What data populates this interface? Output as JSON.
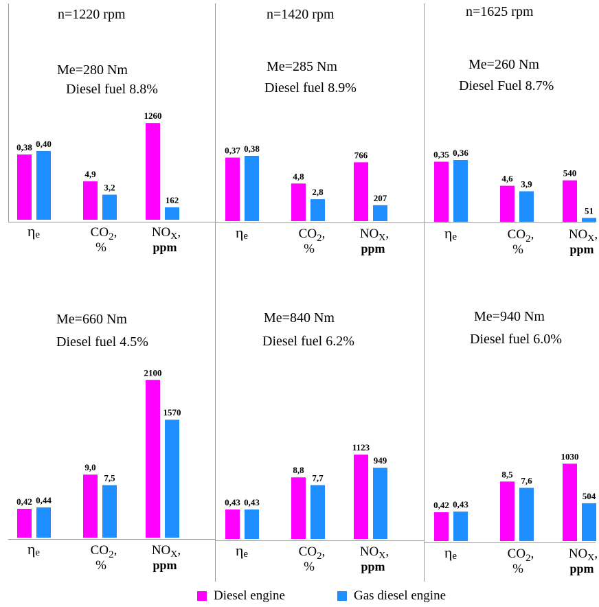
{
  "columns": [
    "n=1220 rpm",
    "n=1420 rpm",
    "n=1625 rpm"
  ],
  "legend": [
    {
      "label": "Diesel engine",
      "color": "#ff00ff"
    },
    {
      "label": "Gas diesel engine",
      "color": "#1f8fff"
    }
  ],
  "panels": [
    {
      "title": "Me=280 Nm",
      "subtitle": "Diesel fuel 8.8%"
    },
    {
      "title": "Me=285 Nm",
      "subtitle": "Diesel fuel 8.9%"
    },
    {
      "title": "Me=260 Nm",
      "subtitle": "Diesel Fuel 8.7%"
    },
    {
      "title": "Me=660 Nm",
      "subtitle": "Diesel fuel 4.5%"
    },
    {
      "title": "Me=840 Nm",
      "subtitle": "Diesel fuel 6.2%"
    },
    {
      "title": "Me=940 Nm",
      "subtitle": "Diesel fuel 6.0%"
    }
  ],
  "chart_data": [
    {
      "type": "bar",
      "categories": [
        "ηe",
        "CO2, %",
        "NOX, ppm"
      ],
      "series": [
        {
          "name": "Diesel engine",
          "values": [
            0.38,
            4.9,
            1260
          ],
          "labels": [
            "0,38",
            "4,9",
            "1260"
          ]
        },
        {
          "name": "Gas diesel engine",
          "values": [
            0.4,
            3.2,
            162
          ],
          "labels": [
            "0,40",
            "3,2",
            "162"
          ]
        }
      ]
    },
    {
      "type": "bar",
      "categories": [
        "ηe",
        "CO2, %",
        "NOX, ppm"
      ],
      "series": [
        {
          "name": "Diesel engine",
          "values": [
            0.37,
            4.8,
            766
          ],
          "labels": [
            "0,37",
            "4,8",
            "766"
          ]
        },
        {
          "name": "Gas diesel engine",
          "values": [
            0.38,
            2.8,
            207
          ],
          "labels": [
            "0,38",
            "2,8",
            "207"
          ]
        }
      ]
    },
    {
      "type": "bar",
      "categories": [
        "ηe",
        "CO2, %",
        "NOX, ppm"
      ],
      "series": [
        {
          "name": "Diesel engine",
          "values": [
            0.35,
            4.6,
            540
          ],
          "labels": [
            "0,35",
            "4,6",
            "540"
          ]
        },
        {
          "name": "Gas diesel engine",
          "values": [
            0.36,
            3.9,
            51
          ],
          "labels": [
            "0,36",
            "3,9",
            "51"
          ]
        }
      ]
    },
    {
      "type": "bar",
      "categories": [
        "ηe",
        "CO2, %",
        "NOX, ppm"
      ],
      "series": [
        {
          "name": "Diesel engine",
          "values": [
            0.42,
            9.0,
            2100
          ],
          "labels": [
            "0,42",
            "9,0",
            "2100"
          ]
        },
        {
          "name": "Gas diesel engine",
          "values": [
            0.44,
            7.5,
            1570
          ],
          "labels": [
            "0,44",
            "7,5",
            "1570"
          ]
        }
      ]
    },
    {
      "type": "bar",
      "categories": [
        "ηe",
        "CO2, %",
        "NOX, ppm"
      ],
      "series": [
        {
          "name": "Diesel engine",
          "values": [
            0.43,
            8.8,
            1123
          ],
          "labels": [
            "0,43",
            "8,8",
            "1123"
          ]
        },
        {
          "name": "Gas diesel engine",
          "values": [
            0.43,
            7.7,
            949
          ],
          "labels": [
            "0,43",
            "7,7",
            "949"
          ]
        }
      ]
    },
    {
      "type": "bar",
      "categories": [
        "ηe",
        "CO2, %",
        "NOX, ppm"
      ],
      "series": [
        {
          "name": "Diesel engine",
          "values": [
            0.42,
            8.5,
            1030
          ],
          "labels": [
            "0,42",
            "8,5",
            "1030"
          ]
        },
        {
          "name": "Gas diesel engine",
          "values": [
            0.43,
            7.6,
            504
          ],
          "labels": [
            "0,43",
            "7,6",
            "504"
          ]
        }
      ]
    }
  ]
}
